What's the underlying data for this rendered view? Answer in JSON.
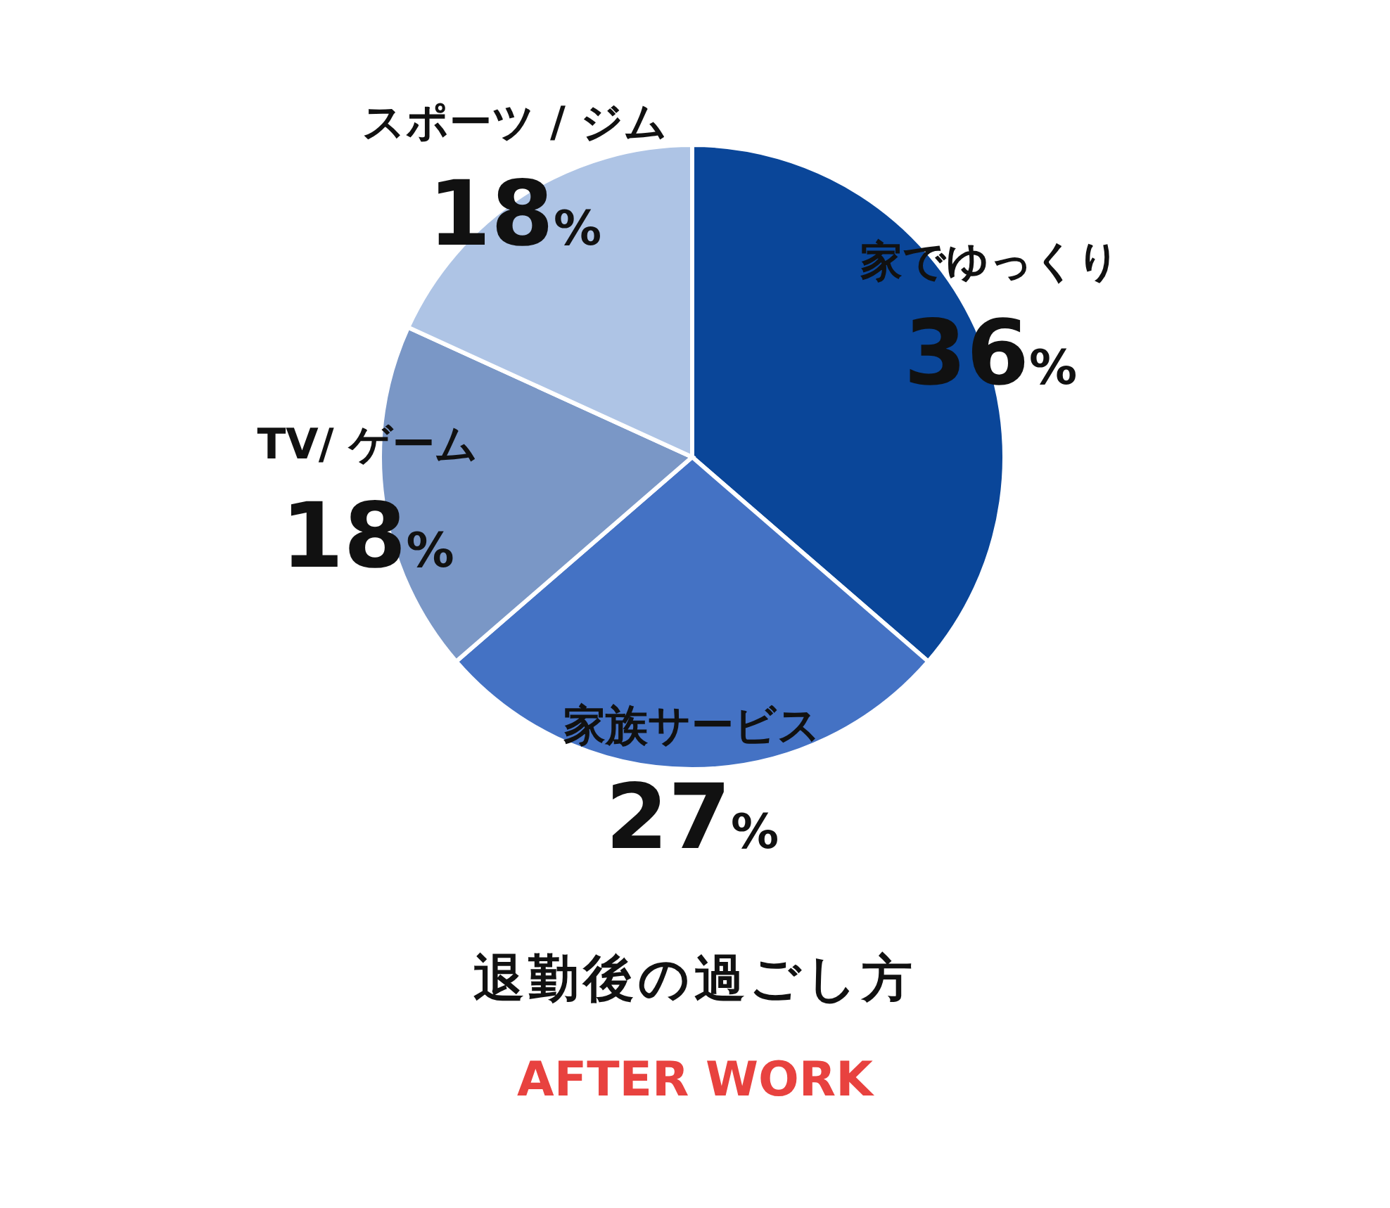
{
  "chart_data": {
    "type": "pie",
    "title": "退勤後の過ごし方",
    "subtitle": "AFTER WORK",
    "categories": [
      "家でゆっくり",
      "家族サービス",
      "TV/ ゲーム",
      "スポーツ / ジム"
    ],
    "values": [
      36,
      27,
      18,
      18
    ],
    "colors": [
      "#0a4699",
      "#4472c4",
      "#7a97c6",
      "#aec4e5"
    ],
    "value_labels": [
      "36%",
      "27%",
      "18%",
      "18%"
    ],
    "legend": false
  }
}
